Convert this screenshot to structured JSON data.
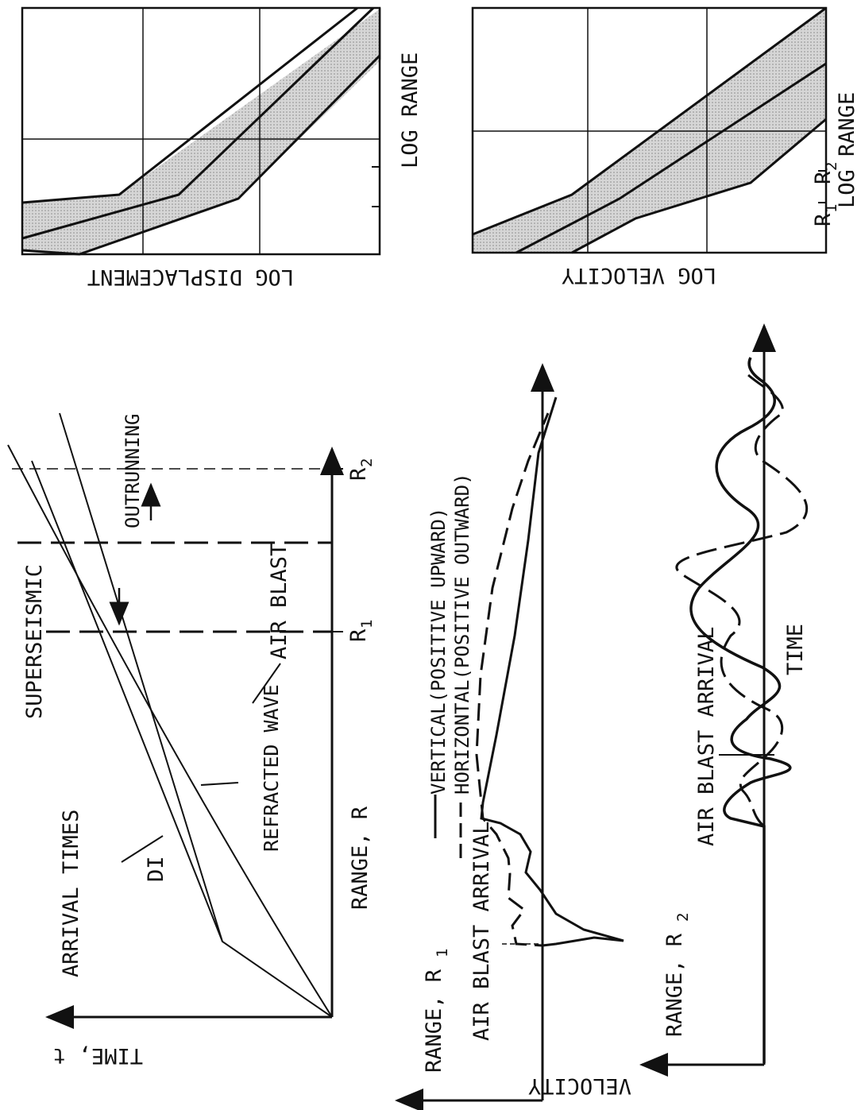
{
  "arrival_times_panel": {
    "title": "ARRIVAL TIMES",
    "y_axis_label": "TIME, t",
    "x_axis_label": "RANGE, R",
    "curve_labels": {
      "di": "DI",
      "refracted": "REFRACTED WAVE",
      "air_blast": "AIR BLAST"
    },
    "region_labels": {
      "superseismic": "SUPERSEISMIC",
      "outrunning": "OUTRUNNING"
    },
    "range_marks": {
      "r1": "R",
      "r1_sub": "1",
      "r2": "R",
      "r2_sub": "2"
    }
  },
  "velocity_r1_panel": {
    "range_label": "RANGE, R",
    "range_sub": "1",
    "arrival_label": "AIR BLAST ARRIVAL",
    "y_axis_label": "VELOCITY",
    "legend": [
      {
        "label": "VERTICAL(POSITIVE UPWARD)",
        "style": "solid"
      },
      {
        "label": "HORIZONTAL(POSITIVE OUTWARD)",
        "style": "dashed"
      }
    ]
  },
  "velocity_r2_panel": {
    "range_label": "RANGE, R",
    "range_sub": "2",
    "arrival_label": "AIR BLAST ARRIVAL",
    "x_axis_label": "TIME"
  },
  "log_displacement_panel": {
    "y_axis_label": "LOG DISPLACEMENT",
    "x_axis_label": "LOG RANGE"
  },
  "log_velocity_panel": {
    "y_axis_label": "LOG VELOCITY",
    "x_axis_label": "LOG RANGE",
    "range_marks": {
      "r1": "R",
      "r1_sub": "1",
      "r2": "R",
      "r2_sub": "2"
    }
  },
  "colors": {
    "ink": "#111111",
    "band_fill": "#cfcfcf",
    "background": "#ffffff"
  }
}
